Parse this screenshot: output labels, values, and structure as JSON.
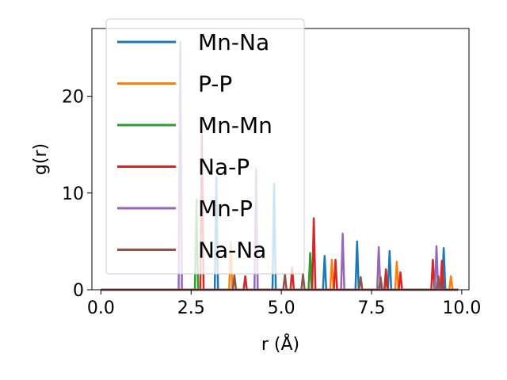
{
  "chart_data": {
    "type": "line",
    "title": "",
    "xlabel": "r (Å)",
    "ylabel": "g(r)",
    "xlim": [
      -0.25,
      10.2
    ],
    "ylim": [
      0,
      27
    ],
    "xticks": [
      "0.0",
      "2.5",
      "5.0",
      "7.5",
      "10.0"
    ],
    "xtick_values": [
      0,
      2.5,
      5.0,
      7.5,
      10.0
    ],
    "yticks": [
      "0",
      "10",
      "20"
    ],
    "ytick_values": [
      0,
      10,
      20
    ],
    "grid": false,
    "legend_placement": "upper-left",
    "peak_half_width": 0.045,
    "series": [
      {
        "name": "Mn-Na",
        "color": "#1f77b4",
        "peaks": [
          [
            3.2,
            11.6
          ],
          [
            4.8,
            11.0
          ],
          [
            6.2,
            3.5
          ],
          [
            7.1,
            5.0
          ],
          [
            8.0,
            4.0
          ],
          [
            9.5,
            4.3
          ]
        ]
      },
      {
        "name": "P-P",
        "color": "#ff7f0e",
        "peaks": [
          [
            3.6,
            4.9
          ],
          [
            5.8,
            3.0
          ],
          [
            6.4,
            3.1
          ],
          [
            8.2,
            2.9
          ],
          [
            9.7,
            1.4
          ]
        ]
      },
      {
        "name": "Mn-Mn",
        "color": "#2ca02c",
        "peaks": [
          [
            2.65,
            9.3
          ],
          [
            5.8,
            3.8
          ],
          [
            7.9,
            1.0
          ]
        ]
      },
      {
        "name": "Na-P",
        "color": "#d62728",
        "peaks": [
          [
            2.8,
            16.0
          ],
          [
            4.0,
            1.4
          ],
          [
            5.3,
            2.3
          ],
          [
            5.9,
            7.4
          ],
          [
            6.5,
            3.1
          ],
          [
            7.9,
            2.1
          ],
          [
            8.3,
            1.8
          ],
          [
            9.2,
            3.1
          ],
          [
            9.45,
            3.0
          ]
        ]
      },
      {
        "name": "Mn-P",
        "color": "#9467bd",
        "peaks": [
          [
            2.2,
            25.6
          ],
          [
            4.3,
            12.5
          ],
          [
            6.7,
            5.8
          ],
          [
            7.7,
            4.4
          ],
          [
            9.3,
            4.5
          ]
        ]
      },
      {
        "name": "Na-Na",
        "color": "#8c564b",
        "peaks": [
          [
            3.7,
            1.5
          ],
          [
            5.1,
            1.6
          ],
          [
            5.6,
            1.6
          ],
          [
            7.2,
            1.3
          ],
          [
            7.75,
            1.3
          ],
          [
            9.35,
            1.4
          ]
        ]
      }
    ]
  }
}
